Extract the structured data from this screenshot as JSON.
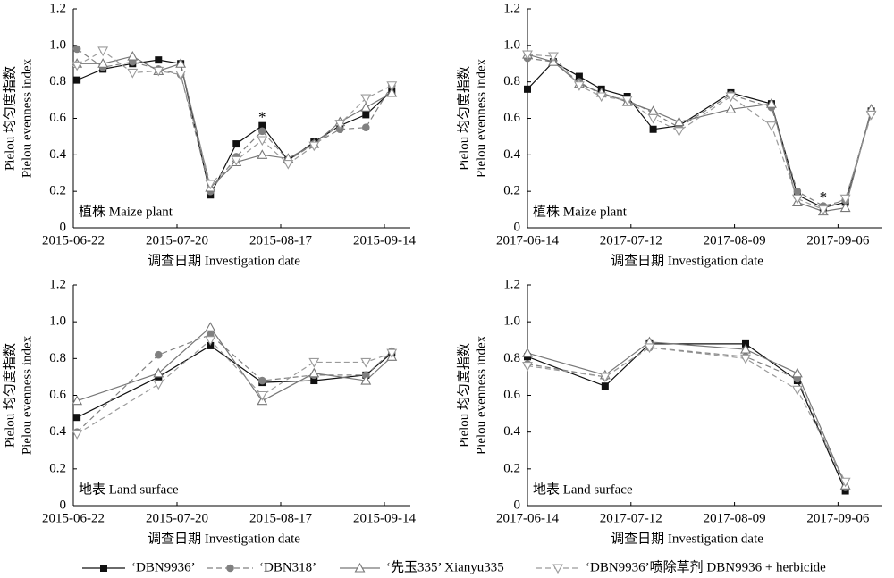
{
  "chart_data": [
    {
      "type": "line",
      "ylabel": [
        "Pielou 均匀度指数",
        "Pielou evenness index"
      ],
      "xlabel": "调查日期 Investigation date",
      "panel_label": "植株 Maize plant",
      "x": [
        "2015-06-23",
        "2015-06-30",
        "2015-07-08",
        "2015-07-15",
        "2015-07-21",
        "2015-07-29",
        "2015-08-05",
        "2015-08-12",
        "2015-08-19",
        "2015-08-26",
        "2015-09-02",
        "2015-09-09",
        "2015-09-16"
      ],
      "xlim": [
        "2015-06-22",
        "2015-09-21"
      ],
      "xticks": [
        "2015-06-22",
        "2015-07-20",
        "2015-08-17",
        "2015-09-14"
      ],
      "ylim": [
        0,
        1.2
      ],
      "yticks": [
        0,
        0.2,
        0.4,
        0.6,
        0.8,
        {
          "value": 1,
          "label": "1.0"
        },
        1.2
      ],
      "annotations": [
        {
          "text": "*",
          "x": "2015-08-12",
          "y": 0.6
        }
      ],
      "series": [
        {
          "name": "‘DBN9936’",
          "color": "#111111",
          "dash": "solid",
          "marker": "square",
          "values": [
            0.81,
            0.87,
            0.9,
            0.92,
            0.9,
            0.18,
            0.46,
            0.56,
            0.37,
            0.47,
            0.56,
            0.62,
            0.75
          ]
        },
        {
          "name": "‘DBN318’",
          "color": "#808080",
          "dash": "dashed",
          "marker": "circle",
          "values": [
            0.98,
            0.88,
            0.91,
            0.87,
            0.84,
            0.2,
            0.39,
            0.53,
            0.37,
            0.46,
            0.54,
            0.55,
            0.78
          ]
        },
        {
          "name": "‘先玉335’ Xianyu335",
          "color": "#777777",
          "dash": "solid",
          "marker": "triangle",
          "values": [
            0.9,
            0.9,
            0.94,
            0.86,
            0.9,
            0.22,
            0.36,
            0.4,
            0.38,
            0.46,
            0.58,
            0.66,
            0.74
          ]
        },
        {
          "name": "‘DBN9936’喷除草剂 DBN9936 + herbicide",
          "color": "#9a9a9a",
          "dash": "dashed",
          "marker": "triangle-down",
          "values": [
            0.89,
            0.97,
            0.85,
            0.86,
            0.84,
            0.24,
            0.37,
            0.48,
            0.35,
            0.45,
            0.57,
            0.71,
            0.78
          ]
        }
      ]
    },
    {
      "type": "line",
      "ylabel": [
        "Pielou 均匀度指数",
        "Pielou evenness index"
      ],
      "xlabel": "调查日期 Investigation date",
      "panel_label": "植株 Maize plant",
      "x": [
        "2017-06-14",
        "2017-06-21",
        "2017-06-28",
        "2017-07-04",
        "2017-07-11",
        "2017-07-18",
        "2017-07-25",
        "2017-08-08",
        "2017-08-19",
        "2017-08-26",
        "2017-09-02",
        "2017-09-08",
        "2017-09-15"
      ],
      "xlim": [
        "2017-06-14",
        "2017-09-18"
      ],
      "xticks": [
        "2017-06-14",
        "2017-07-12",
        "2017-08-09",
        "2017-09-06"
      ],
      "ylim": [
        0,
        1.2
      ],
      "yticks": [
        0,
        0.2,
        0.4,
        0.6,
        0.8,
        {
          "value": 1,
          "label": "1.0"
        },
        1.2
      ],
      "annotations": [
        {
          "text": "*",
          "x": "2017-09-02",
          "y": 0.16
        }
      ],
      "series": [
        {
          "color": "#111111",
          "dash": "solid",
          "marker": "square",
          "values": [
            0.76,
            0.91,
            0.83,
            0.76,
            0.72,
            0.54,
            0.56,
            0.74,
            0.68,
            0.18,
            0.11,
            0.14,
            0.64
          ]
        },
        {
          "color": "#808080",
          "dash": "dashed",
          "marker": "circle",
          "values": [
            0.93,
            0.91,
            0.8,
            0.73,
            0.7,
            0.63,
            0.55,
            0.73,
            0.66,
            0.2,
            0.12,
            0.15,
            0.63
          ]
        },
        {
          "color": "#777777",
          "dash": "solid",
          "marker": "triangle",
          "values": [
            0.95,
            0.91,
            0.79,
            0.74,
            0.69,
            0.64,
            0.58,
            0.65,
            0.68,
            0.14,
            0.09,
            0.11,
            0.65
          ]
        },
        {
          "color": "#9a9a9a",
          "dash": "dashed",
          "marker": "triangle-down",
          "values": [
            0.95,
            0.94,
            0.78,
            0.72,
            0.7,
            0.6,
            0.53,
            0.72,
            0.56,
            0.16,
            0.1,
            0.16,
            0.62
          ]
        }
      ]
    },
    {
      "type": "line",
      "ylabel": [
        "Pielou 均匀度指数",
        "Pielou evenness index"
      ],
      "xlabel": "调查日期 Investigation date",
      "panel_label": "地表 Land surface",
      "x": [
        "2015-06-23",
        "2015-07-15",
        "2015-07-29",
        "2015-08-12",
        "2015-08-26",
        "2015-09-09",
        "2015-09-16"
      ],
      "xlim": [
        "2015-06-22",
        "2015-09-21"
      ],
      "xticks": [
        "2015-06-22",
        "2015-07-20",
        "2015-08-17",
        "2015-09-14"
      ],
      "ylim": [
        0,
        1.2
      ],
      "yticks": [
        0,
        0.2,
        0.4,
        0.6,
        0.8,
        {
          "value": 1,
          "label": "1.0"
        },
        1.2
      ],
      "series": [
        {
          "color": "#111111",
          "dash": "solid",
          "marker": "square",
          "values": [
            0.48,
            0.7,
            0.87,
            0.67,
            0.68,
            0.71,
            0.83
          ]
        },
        {
          "color": "#808080",
          "dash": "dashed",
          "marker": "circle",
          "values": [
            0.4,
            0.82,
            0.93,
            0.68,
            0.71,
            0.71,
            0.84
          ]
        },
        {
          "color": "#777777",
          "dash": "solid",
          "marker": "triangle",
          "values": [
            0.57,
            0.72,
            0.97,
            0.57,
            0.72,
            0.68,
            0.81
          ]
        },
        {
          "color": "#9a9a9a",
          "dash": "dashed",
          "marker": "triangle-down",
          "values": [
            0.39,
            0.66,
            0.9,
            0.6,
            0.78,
            0.78,
            0.83
          ]
        }
      ]
    },
    {
      "type": "line",
      "ylabel": [
        "Pielou 均匀度指数",
        "Pielou evenness index"
      ],
      "xlabel": "调查日期 Investigation date",
      "panel_label": "地表 Land surface",
      "x": [
        "2017-06-14",
        "2017-07-05",
        "2017-07-17",
        "2017-08-12",
        "2017-08-26",
        "2017-09-08"
      ],
      "xlim": [
        "2017-06-14",
        "2017-09-18"
      ],
      "xticks": [
        "2017-06-14",
        "2017-07-12",
        "2017-08-09",
        "2017-09-06"
      ],
      "ylim": [
        0,
        1.2
      ],
      "yticks": [
        0,
        0.2,
        0.4,
        0.6,
        0.8,
        {
          "value": 1,
          "label": "1.0"
        },
        1.2
      ],
      "series": [
        {
          "color": "#111111",
          "dash": "solid",
          "marker": "square",
          "values": [
            0.81,
            0.65,
            0.88,
            0.88,
            0.68,
            0.08
          ]
        },
        {
          "color": "#808080",
          "dash": "dashed",
          "marker": "circle",
          "values": [
            0.77,
            0.7,
            0.86,
            0.81,
            0.69,
            0.1
          ]
        },
        {
          "color": "#777777",
          "dash": "solid",
          "marker": "triangle",
          "values": [
            0.83,
            0.71,
            0.89,
            0.85,
            0.72,
            0.11
          ]
        },
        {
          "color": "#9a9a9a",
          "dash": "dashed",
          "marker": "triangle-down",
          "values": [
            0.76,
            0.7,
            0.86,
            0.8,
            0.63,
            0.13
          ]
        }
      ]
    }
  ]
}
